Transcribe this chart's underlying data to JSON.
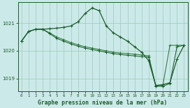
{
  "title": "Graphe pression niveau de la mer (hPa)",
  "bg_color": "#cce9e9",
  "grid_color": "#99ccbb",
  "line_color_dark": "#1a5c2a",
  "line_color_mid": "#2d7a3a",
  "xlim": [
    -0.5,
    23.5
  ],
  "ylim": [
    1018.55,
    1021.75
  ],
  "yticks": [
    1019,
    1020,
    1021
  ],
  "xticks": [
    0,
    1,
    2,
    3,
    4,
    5,
    6,
    7,
    8,
    9,
    10,
    11,
    12,
    13,
    14,
    15,
    16,
    17,
    18,
    19,
    20,
    21,
    22,
    23
  ],
  "series1": {
    "x": [
      0,
      1,
      2,
      3,
      4,
      5,
      6,
      7,
      8,
      9,
      10,
      11,
      12,
      13,
      14,
      15,
      16,
      17,
      18,
      19,
      20,
      21,
      22,
      23
    ],
    "y": [
      1020.35,
      1020.7,
      1020.78,
      1020.78,
      1020.8,
      1020.82,
      1020.85,
      1020.9,
      1021.05,
      1021.35,
      1021.55,
      1021.45,
      1020.9,
      1020.65,
      1020.5,
      1020.35,
      1020.15,
      1019.95,
      1019.65,
      1018.75,
      1018.78,
      1018.85,
      1019.7,
      1020.2
    ]
  },
  "series2": {
    "x": [
      0,
      1,
      2,
      3,
      4,
      5,
      6,
      7,
      8,
      9,
      10,
      11,
      12,
      13,
      14,
      15,
      16,
      17,
      18,
      19,
      20,
      21,
      22,
      23
    ],
    "y": [
      1020.35,
      1020.7,
      1020.78,
      1020.78,
      1020.65,
      1020.5,
      1020.4,
      1020.3,
      1020.22,
      1020.15,
      1020.1,
      1020.05,
      1020.0,
      1019.95,
      1019.92,
      1019.9,
      1019.88,
      1019.85,
      1019.82,
      1018.75,
      1018.75,
      1020.2,
      1020.2,
      1020.2
    ]
  },
  "series3": {
    "x": [
      0,
      1,
      2,
      3,
      4,
      5,
      6,
      7,
      8,
      9,
      10,
      11,
      12,
      13,
      14,
      15,
      16,
      17,
      18,
      19,
      20,
      21,
      22,
      23
    ],
    "y": [
      1020.35,
      1020.7,
      1020.78,
      1020.78,
      1020.62,
      1020.45,
      1020.35,
      1020.25,
      1020.17,
      1020.1,
      1020.05,
      1020.0,
      1019.95,
      1019.9,
      1019.87,
      1019.84,
      1019.82,
      1019.79,
      1019.77,
      1018.72,
      1018.72,
      1018.82,
      1020.15,
      1020.2
    ]
  }
}
